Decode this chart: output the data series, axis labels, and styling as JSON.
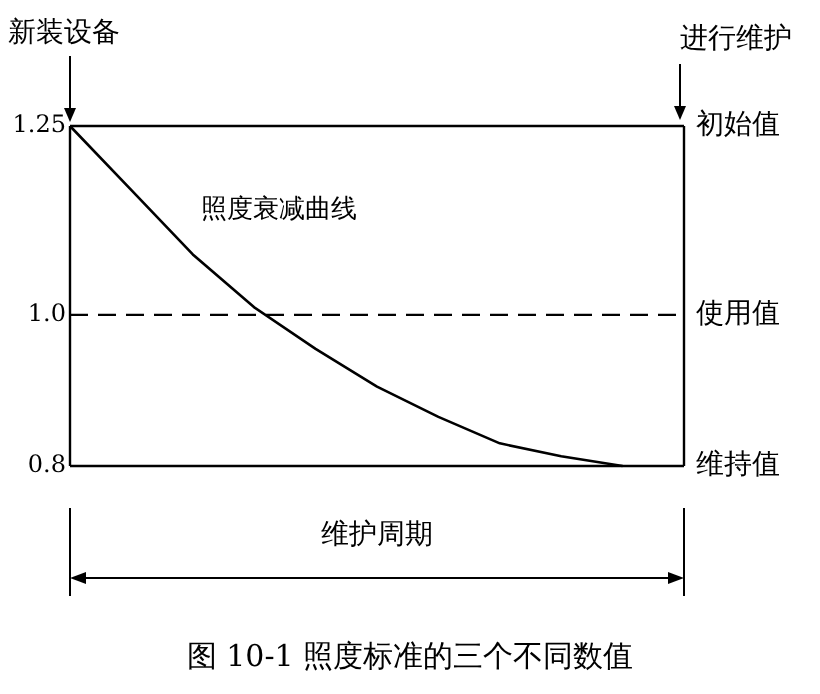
{
  "chart_data": {
    "type": "line",
    "categories": [
      null,
      null,
      null,
      null,
      null,
      null,
      null,
      null,
      null,
      null,
      null
    ],
    "series": [
      {
        "name": "照度衰减曲线",
        "color": "#000000",
        "values": [
          1.25,
          1.165,
          1.08,
          1.01,
          0.955,
          0.905,
          0.865,
          0.83,
          0.813,
          0.8,
          null
        ]
      }
    ],
    "ylim": [
      0.8,
      1.25
    ],
    "yticks": [
      0.8,
      {
        "value": 1.0,
        "label": "1.0"
      },
      1.25
    ],
    "ref_lines": [
      {
        "axis": "y",
        "value": 1.25,
        "label": "初始值",
        "line_style": "solid"
      },
      {
        "axis": "y",
        "value": 1.0,
        "label": "使用值",
        "line_style": "dashed"
      },
      {
        "axis": "y",
        "value": 0.8,
        "label": "维持值",
        "line_style": "solid"
      }
    ],
    "annotations": [
      "新装设备",
      "进行维护",
      "维护周期",
      "图 10-1  照度标准的三个不同数值"
    ],
    "grid": false,
    "marker": "none",
    "line_style": "solid"
  }
}
